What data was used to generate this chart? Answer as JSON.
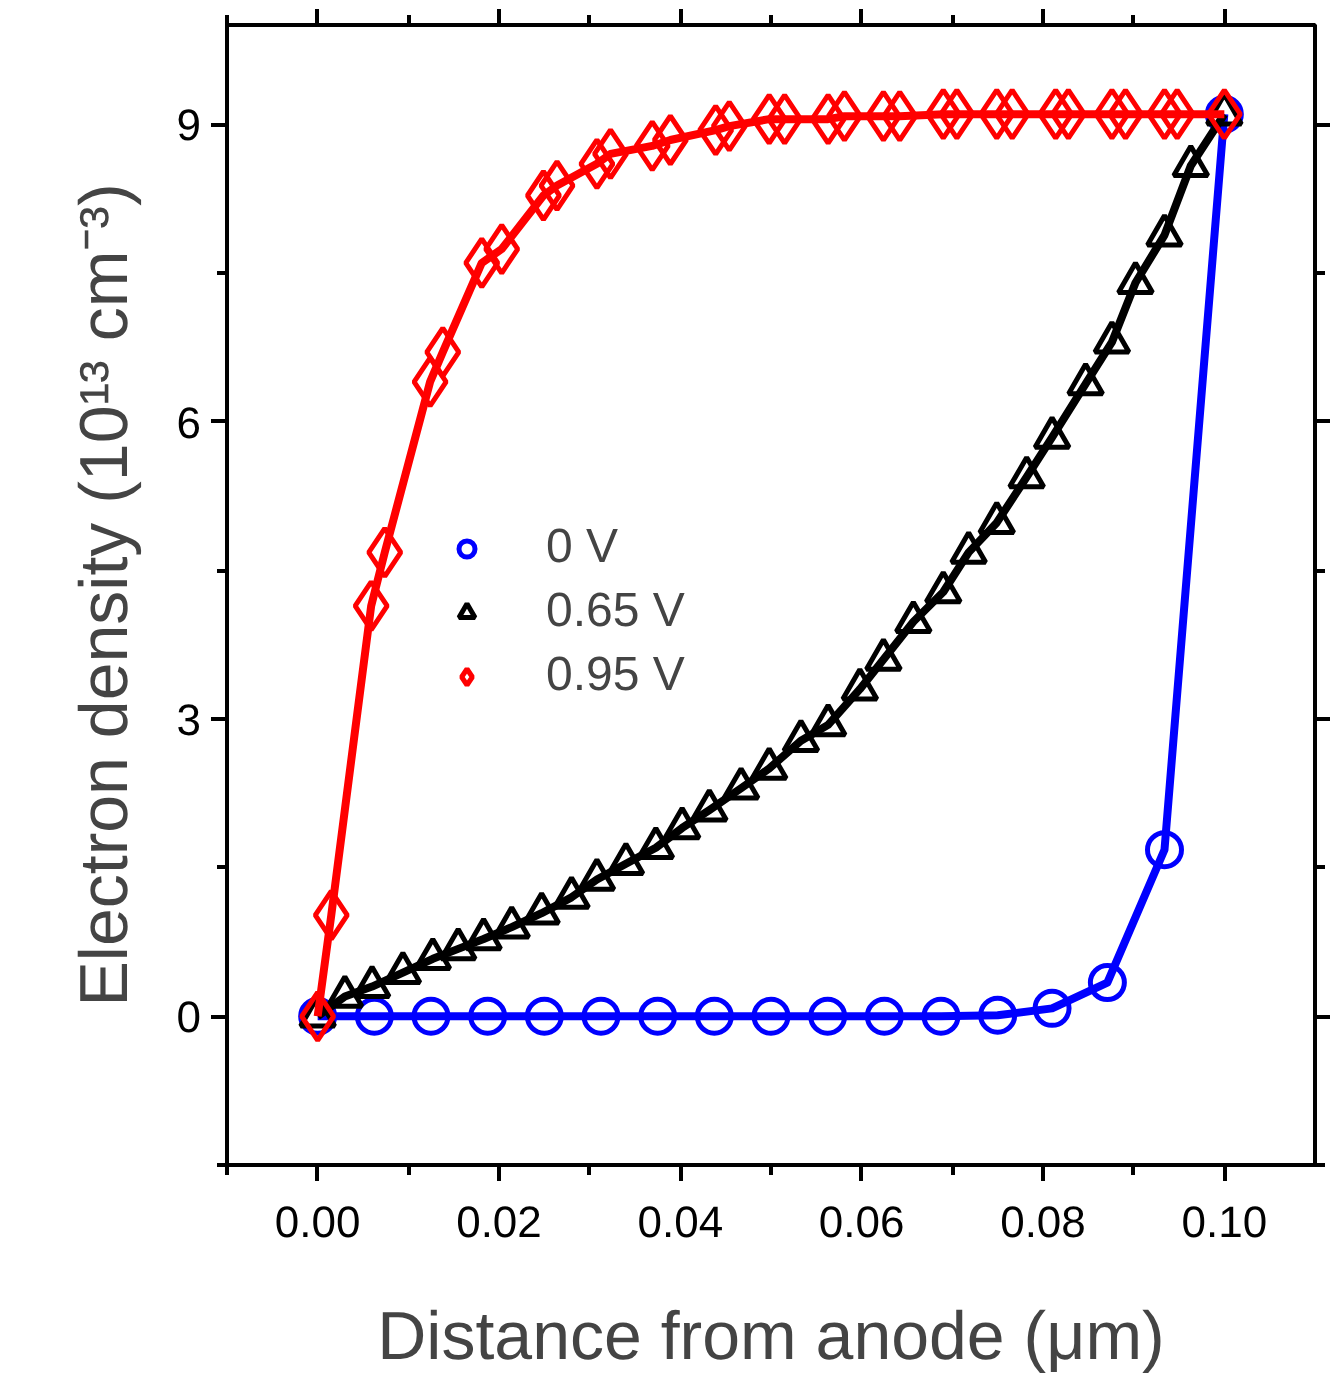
{
  "chart_data": {
    "type": "line",
    "xlabel": "Distance from anode (μm)",
    "ylabel": "Electron density (10¹³ cm⁻³)",
    "xlim": [
      -0.01,
      0.11
    ],
    "ylim": [
      -1.5,
      10
    ],
    "xticks": [
      {
        "value": 0,
        "label": "0.00"
      },
      {
        "value": 0.02,
        "label": "0.02"
      },
      {
        "value": 0.04,
        "label": "0.04"
      },
      {
        "value": 0.06,
        "label": "0.06"
      },
      {
        "value": 0.08,
        "label": "0.08"
      },
      {
        "value": 0.1,
        "label": "0.10"
      },
      {
        "value": -0.01,
        "label": null
      },
      {
        "value": 0.01,
        "label": null
      },
      {
        "value": 0.03,
        "label": null
      },
      {
        "value": 0.05,
        "label": null
      },
      {
        "value": 0.07,
        "label": null
      },
      {
        "value": 0.09,
        "label": null
      }
    ],
    "yticks": [
      0,
      3,
      6,
      9,
      {
        "value": -1.5,
        "label": null
      },
      {
        "value": 1.5,
        "label": null
      },
      {
        "value": 4.5,
        "label": null
      },
      {
        "value": 7.5,
        "label": null
      }
    ],
    "grid": false,
    "legend": "center",
    "line_style": "solid",
    "series": [
      {
        "name": "0 V",
        "color": "#0000ff",
        "marker": "circle",
        "x": [
          0,
          0.00625,
          0.0125,
          0.01875,
          0.025,
          0.03125,
          0.0375,
          0.04375,
          0.05,
          0.05625,
          0.0625,
          0.06875,
          0.075,
          0.081,
          0.0871,
          0.0934,
          0.1
        ],
        "values": [
          0,
          0,
          0,
          0,
          0,
          0,
          0,
          0,
          0,
          0,
          0,
          0,
          0.01,
          0.08,
          0.34,
          1.68,
          9.1
        ]
      },
      {
        "name": "0.65 V",
        "color": "#000000",
        "marker": "triangle",
        "x": [
          0,
          0.003,
          0.006,
          0.0094,
          0.0127,
          0.0155,
          0.0183,
          0.0214,
          0.0247,
          0.028,
          0.0308,
          0.034,
          0.0373,
          0.0402,
          0.0432,
          0.0467,
          0.0498,
          0.0533,
          0.0563,
          0.0598,
          0.0624,
          0.0657,
          0.069,
          0.0718,
          0.0749,
          0.0782,
          0.081,
          0.0847,
          0.0876,
          0.0902,
          0.0934,
          0.0963,
          0.1
        ],
        "values": [
          0,
          0.2,
          0.3,
          0.44,
          0.58,
          0.68,
          0.78,
          0.9,
          1.04,
          1.2,
          1.38,
          1.54,
          1.7,
          1.9,
          2.08,
          2.3,
          2.5,
          2.78,
          2.94,
          3.3,
          3.6,
          3.98,
          4.28,
          4.68,
          4.98,
          5.44,
          5.84,
          6.38,
          6.8,
          7.4,
          7.88,
          8.58,
          9.1
        ]
      },
      {
        "name": "0.95 V",
        "color": "#ff0000",
        "marker": "diamond",
        "x": [
          0,
          0.0015,
          0.0059,
          0.0074,
          0.0124,
          0.0138,
          0.0181,
          0.0203,
          0.0249,
          0.0264,
          0.0308,
          0.0323,
          0.0369,
          0.0389,
          0.0439,
          0.0454,
          0.0498,
          0.0515,
          0.0563,
          0.0581,
          0.0624,
          0.0642,
          0.069,
          0.0705,
          0.0749,
          0.0766,
          0.0814,
          0.0828,
          0.0876,
          0.0891,
          0.0934,
          0.0948,
          0.1
        ],
        "values": [
          0,
          1.02,
          4.14,
          4.68,
          6.4,
          6.7,
          7.6,
          7.74,
          8.28,
          8.38,
          8.6,
          8.7,
          8.78,
          8.84,
          8.94,
          8.98,
          9.05,
          9.05,
          9.05,
          9.08,
          9.08,
          9.08,
          9.1,
          9.1,
          9.1,
          9.1,
          9.1,
          9.1,
          9.1,
          9.1,
          9.1,
          9.1,
          9.1
        ]
      }
    ]
  }
}
